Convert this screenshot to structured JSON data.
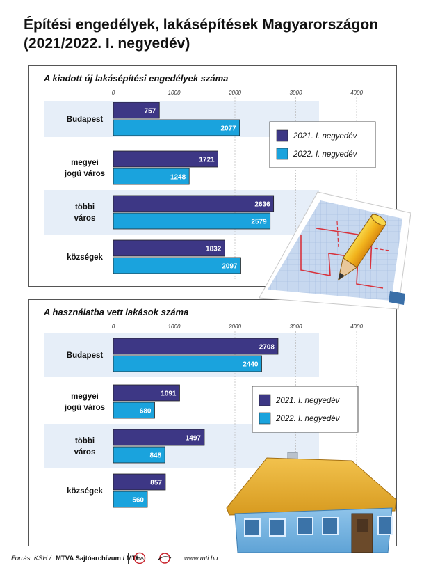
{
  "title_line1": "Építési engedélyek, lakásépítések Magyarországon",
  "title_line2": "(2021/2022. I. negyedév)",
  "chart_data": [
    {
      "type": "bar",
      "orientation": "horizontal",
      "title": "A kiadott új lakásépítési engedélyek száma",
      "categories": [
        "Budapest",
        "megyei jogú város",
        "többi város",
        "községek"
      ],
      "category_lines": [
        [
          "Budapest"
        ],
        [
          "megyei",
          "jogú város"
        ],
        [
          "többi",
          "város"
        ],
        [
          "községek"
        ]
      ],
      "series": [
        {
          "name": "2021. I. negyedév",
          "values": [
            757,
            1721,
            2636,
            1832
          ],
          "color": "#3d3785"
        },
        {
          "name": "2022. I. negyedév",
          "values": [
            2077,
            1248,
            2579,
            2097
          ],
          "color": "#1aa3dd"
        }
      ],
      "xlim": [
        0,
        4000
      ],
      "xticks": [
        "0",
        "1000",
        "2000",
        "3000",
        "4000"
      ],
      "grid": true,
      "legend_position": "right"
    },
    {
      "type": "bar",
      "orientation": "horizontal",
      "title": "A használatba vett lakások száma",
      "categories": [
        "Budapest",
        "megyei jogú város",
        "többi város",
        "községek"
      ],
      "category_lines": [
        [
          "Budapest"
        ],
        [
          "megyei",
          "jogú város"
        ],
        [
          "többi",
          "város"
        ],
        [
          "községek"
        ]
      ],
      "series": [
        {
          "name": "2021. I. negyedév",
          "values": [
            2708,
            1091,
            1497,
            857
          ],
          "color": "#3d3785"
        },
        {
          "name": "2022. I. negyedév",
          "values": [
            2440,
            680,
            848,
            560
          ],
          "color": "#1aa3dd"
        }
      ],
      "xlim": [
        0,
        4000
      ],
      "xticks": [
        "0",
        "1000",
        "2000",
        "3000",
        "4000"
      ],
      "grid": true,
      "legend_position": "right"
    }
  ],
  "footer": {
    "source_label": "Forrás: KSH /",
    "archive": "MTVA Sajtóarchívum / MTI",
    "mti_logo_text": "MTVA",
    "website": "www.mti.hu"
  }
}
